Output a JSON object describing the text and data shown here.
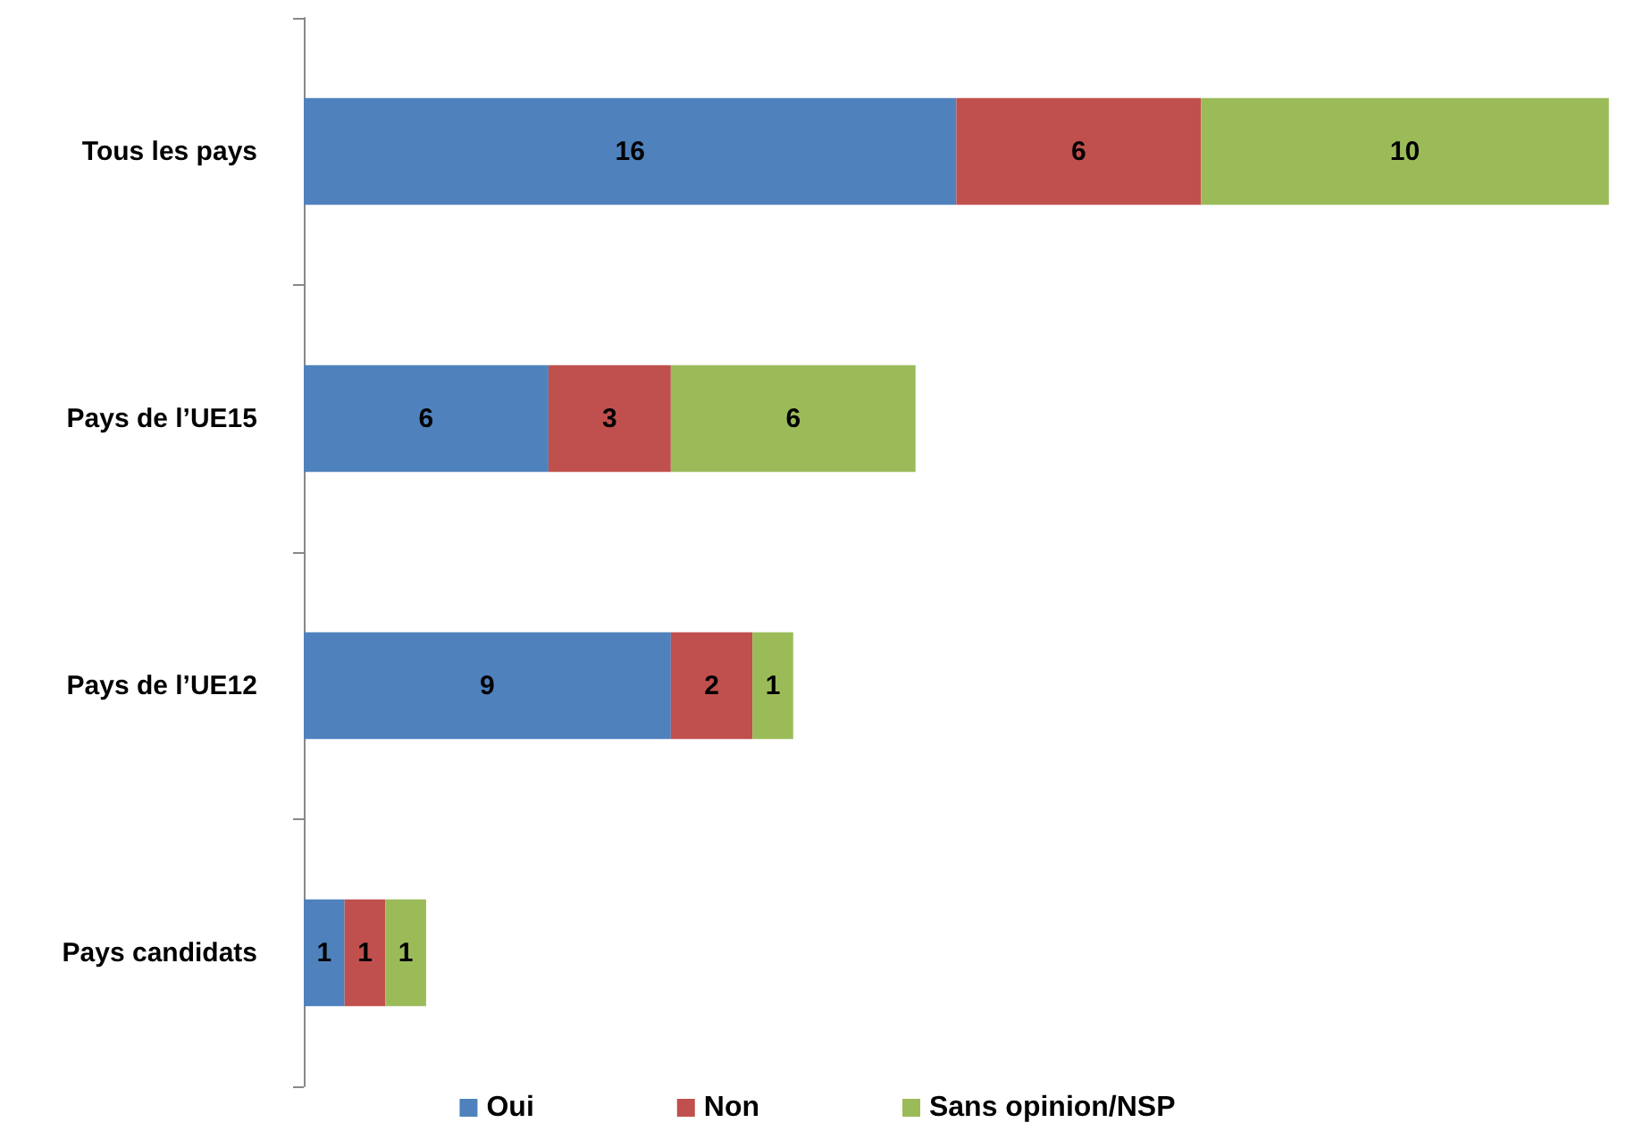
{
  "chart_data": {
    "type": "bar",
    "orientation": "horizontal",
    "stacked": true,
    "data_labels": true,
    "legend": "bottom",
    "categories": [
      "Tous les pays",
      "Pays de l’UE15",
      "Pays de l’UE12",
      "Pays candidats"
    ],
    "series": [
      {
        "name": "Oui",
        "color": "#4f81bd",
        "values": [
          16,
          6,
          9,
          1
        ]
      },
      {
        "name": "Non",
        "color": "#c0504d",
        "values": [
          6,
          3,
          2,
          1
        ]
      },
      {
        "name": "Sans opinion/NSP",
        "color": "#9bbb59",
        "values": [
          10,
          6,
          1,
          1
        ]
      }
    ]
  }
}
